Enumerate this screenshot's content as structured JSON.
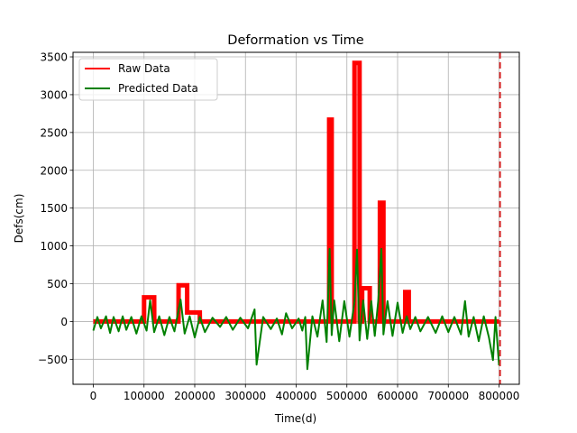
{
  "chart_data": {
    "type": "line",
    "title": "Deformation vs Time",
    "xlabel": "Time(d)",
    "ylabel": "Defs(cm)",
    "xlim": [
      -40000,
      840000
    ],
    "ylim": [
      -830,
      3560
    ],
    "xticks": [
      0,
      100000,
      200000,
      300000,
      400000,
      500000,
      600000,
      700000,
      800000
    ],
    "xtick_labels": [
      "0",
      "100000",
      "200000",
      "300000",
      "400000",
      "500000",
      "600000",
      "700000",
      "800000"
    ],
    "yticks": [
      -500,
      0,
      500,
      1000,
      1500,
      2000,
      2500,
      3000,
      3500
    ],
    "ytick_labels": [
      "−500",
      "0",
      "500",
      "1000",
      "1500",
      "2000",
      "2500",
      "3000",
      "3500"
    ],
    "grid": true,
    "legend_position": "top-left",
    "vline": {
      "x": 802000,
      "color": "#d62728",
      "style": "dashed"
    },
    "series": [
      {
        "name": "Raw Data",
        "color": "#ff0000",
        "x": [
          0,
          100000,
          100100,
          120000,
          120100,
          168000,
          168100,
          185000,
          185100,
          210000,
          210100,
          465000,
          465100,
          470000,
          470100,
          515000,
          515100,
          525000,
          525100,
          530000,
          530100,
          545000,
          545100,
          565000,
          565100,
          572000,
          572100,
          615000,
          615100,
          622000,
          622100,
          800000
        ],
        "y": [
          0,
          0,
          320,
          320,
          0,
          0,
          480,
          480,
          120,
          120,
          0,
          0,
          2670,
          2670,
          0,
          0,
          3420,
          3420,
          0,
          0,
          440,
          440,
          0,
          0,
          1570,
          1570,
          0,
          0,
          390,
          390,
          0,
          0
        ]
      },
      {
        "name": "Predicted Data",
        "color": "#008000",
        "x": [
          0,
          8000,
          15000,
          25000,
          33000,
          40000,
          50000,
          58000,
          65000,
          75000,
          85000,
          95000,
          105000,
          112000,
          120000,
          130000,
          140000,
          150000,
          160000,
          172000,
          180000,
          190000,
          200000,
          210000,
          220000,
          235000,
          250000,
          262000,
          275000,
          290000,
          305000,
          318000,
          322000,
          335000,
          350000,
          362000,
          372000,
          380000,
          392000,
          405000,
          412000,
          418000,
          422000,
          432000,
          442000,
          452000,
          460000,
          466000,
          470000,
          475000,
          485000,
          495000,
          505000,
          515000,
          520000,
          525000,
          532000,
          540000,
          548000,
          555000,
          562000,
          568000,
          572000,
          580000,
          590000,
          600000,
          610000,
          618000,
          625000,
          635000,
          645000,
          660000,
          675000,
          688000,
          700000,
          712000,
          725000,
          733000,
          740000,
          750000,
          760000,
          770000,
          780000,
          788000,
          793000,
          800000
        ],
        "y": [
          -120,
          60,
          -90,
          70,
          -150,
          60,
          -130,
          70,
          -110,
          60,
          -160,
          70,
          -120,
          280,
          -140,
          70,
          -180,
          60,
          -130,
          290,
          -160,
          70,
          -210,
          60,
          -140,
          50,
          -70,
          60,
          -110,
          50,
          -90,
          160,
          -570,
          60,
          -100,
          40,
          -170,
          110,
          -90,
          40,
          -120,
          60,
          -630,
          70,
          -200,
          280,
          -270,
          960,
          -180,
          280,
          -260,
          270,
          -200,
          260,
          950,
          -250,
          280,
          -230,
          270,
          -190,
          280,
          960,
          -170,
          270,
          -190,
          250,
          -150,
          70,
          -100,
          60,
          -130,
          60,
          -150,
          70,
          -140,
          60,
          -170,
          270,
          -200,
          60,
          -260,
          70,
          -210,
          -510,
          60,
          -580
        ]
      }
    ]
  }
}
